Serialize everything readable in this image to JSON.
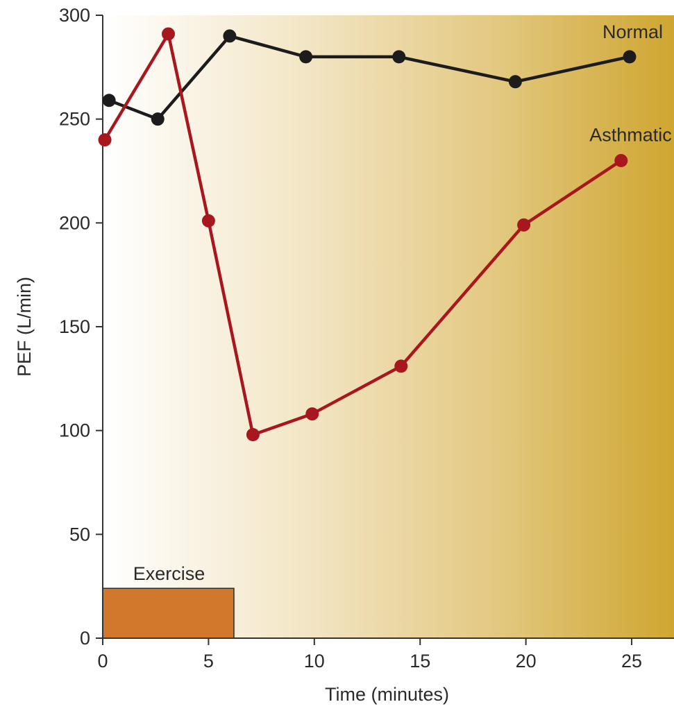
{
  "chart_data": {
    "type": "line",
    "xlabel": "Time (minutes)",
    "ylabel": "PEF (L/min)",
    "xlim": [
      0,
      27
    ],
    "ylim": [
      0,
      300
    ],
    "xticks": [
      0,
      5,
      10,
      15,
      20,
      25
    ],
    "yticks": [
      0,
      50,
      100,
      150,
      200,
      250,
      300
    ],
    "x_tick_labels": [
      "0",
      "5",
      "10",
      "15",
      "20",
      "25"
    ],
    "y_tick_labels": [
      "0",
      "50",
      "100",
      "150",
      "200",
      "250",
      "300"
    ],
    "grid": false,
    "background": {
      "from": "#ffffff",
      "to": "#cfa630"
    },
    "series": [
      {
        "name": "Normal",
        "color": "#1c1c1c",
        "points": [
          {
            "x": 0.3,
            "y": 259
          },
          {
            "x": 2.6,
            "y": 250
          },
          {
            "x": 6.0,
            "y": 290
          },
          {
            "x": 9.6,
            "y": 280
          },
          {
            "x": 14.0,
            "y": 280
          },
          {
            "x": 19.5,
            "y": 268
          },
          {
            "x": 24.9,
            "y": 280
          }
        ]
      },
      {
        "name": "Asthmatic",
        "color": "#a8171e",
        "points": [
          {
            "x": 0.1,
            "y": 240
          },
          {
            "x": 3.1,
            "y": 291
          },
          {
            "x": 5.0,
            "y": 201
          },
          {
            "x": 7.1,
            "y": 98
          },
          {
            "x": 9.9,
            "y": 108
          },
          {
            "x": 14.1,
            "y": 131
          },
          {
            "x": 19.9,
            "y": 199
          },
          {
            "x": 24.5,
            "y": 230
          }
        ]
      }
    ],
    "exercise_bar": {
      "label": "Exercise",
      "x_start": 0,
      "x_end": 6.2,
      "y_top": 24,
      "color": "#d2782c"
    }
  }
}
